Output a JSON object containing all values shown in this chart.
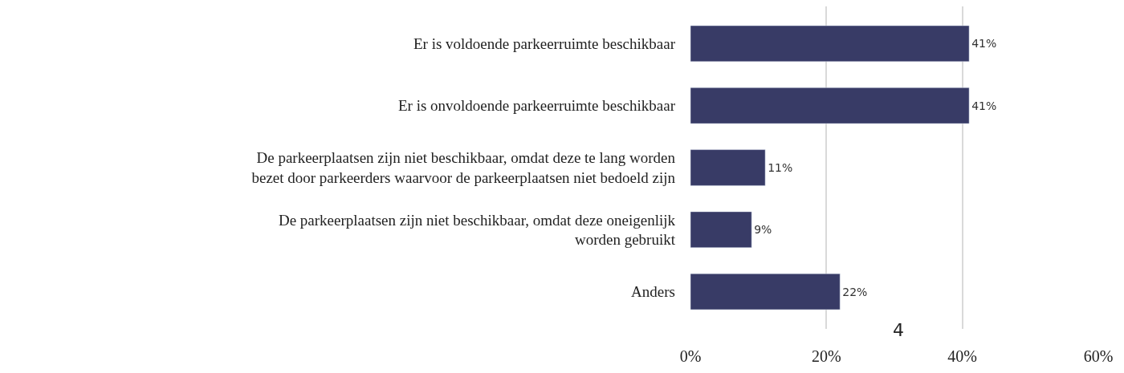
{
  "chart_data": {
    "type": "bar",
    "orientation": "horizontal",
    "categories": [
      "Er is voldoende parkeerruimte beschikbaar",
      "Er is onvoldoende parkeerruimte beschikbaar",
      "De parkeerplaatsen zijn niet beschikbaar, omdat deze te lang worden bezet door parkeerders waarvoor de parkeerplaatsen niet bedoeld zijn",
      "De parkeerplaatsen zijn niet beschikbaar, omdat deze oneigenlijk worden gebruikt",
      "Anders"
    ],
    "values": [
      41,
      41,
      11,
      9,
      22
    ],
    "value_labels": [
      "41%",
      "41%",
      "11%",
      "9%",
      "22%"
    ],
    "color": "#383b66",
    "xlim": [
      0,
      60
    ],
    "xticks": [
      {
        "value": 0,
        "label": "0%"
      },
      {
        "value": 20,
        "label": "20%"
      },
      {
        "value": 40,
        "label": "40%"
      },
      {
        "value": 60,
        "label": "60%"
      }
    ],
    "grid": "x",
    "legend": false,
    "annotations": [
      "4"
    ]
  }
}
